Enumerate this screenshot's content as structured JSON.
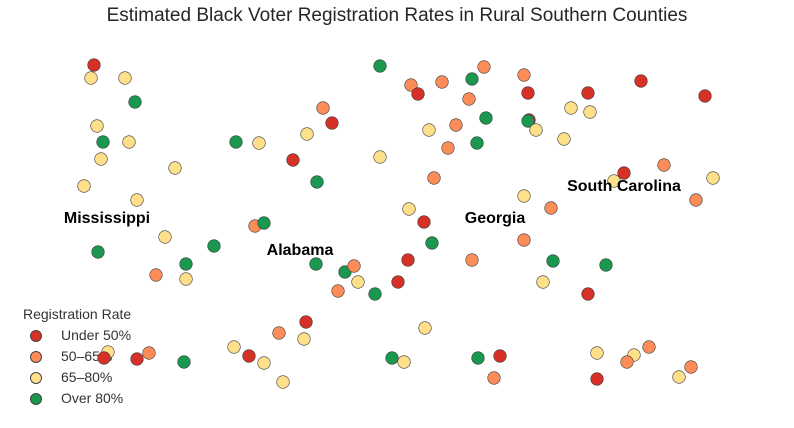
{
  "chart_data": {
    "type": "scatter",
    "title": "Estimated Black Voter Registration Rates in Rural Southern Counties",
    "xlabel": "",
    "ylabel": "",
    "axes_visible": false,
    "grid": false,
    "legend": {
      "title": "Registration Rate",
      "placement": "bottom-left"
    },
    "categories": [
      {
        "label": "Under 50%",
        "color": "#d73027"
      },
      {
        "label": "50–65%",
        "color": "#fc8d59"
      },
      {
        "label": "65–80%",
        "color": "#fee08b"
      },
      {
        "label": "Over 80%",
        "color": "#1a9850"
      }
    ],
    "annotations": [
      "Mississippi",
      "Alabama",
      "Georgia",
      "South Carolina"
    ],
    "points": [
      [
        -89.12,
        34.2,
        0
      ],
      [
        -89.18,
        33.94,
        2
      ],
      [
        -88.5,
        33.94,
        2
      ],
      [
        -88.3,
        33.46,
        3
      ],
      [
        -89.06,
        32.98,
        2
      ],
      [
        -88.94,
        32.66,
        3
      ],
      [
        -88.42,
        32.66,
        2
      ],
      [
        -88.98,
        32.32,
        2
      ],
      [
        -87.5,
        32.14,
        2
      ],
      [
        -89.32,
        31.78,
        2
      ],
      [
        -88.26,
        31.5,
        2
      ],
      [
        -87.7,
        30.76,
        2
      ],
      [
        -89.04,
        30.46,
        3
      ],
      [
        -87.28,
        30.22,
        3
      ],
      [
        -86.72,
        30.58,
        3
      ],
      [
        -87.88,
        30.0,
        1
      ],
      [
        -87.28,
        29.92,
        2
      ],
      [
        -88.84,
        28.46,
        2
      ],
      [
        -88.92,
        28.34,
        0
      ],
      [
        -88.02,
        28.44,
        1
      ],
      [
        -88.26,
        28.32,
        0
      ],
      [
        -87.32,
        28.26,
        3
      ],
      [
        -86.28,
        32.66,
        3
      ],
      [
        -85.82,
        32.64,
        2
      ],
      [
        -84.86,
        32.82,
        2
      ],
      [
        -84.54,
        33.34,
        1
      ],
      [
        -84.36,
        33.04,
        0
      ],
      [
        -85.14,
        32.3,
        0
      ],
      [
        -84.66,
        31.86,
        3
      ],
      [
        -85.9,
        30.98,
        1
      ],
      [
        -85.72,
        31.04,
        3
      ],
      [
        -84.68,
        30.22,
        3
      ],
      [
        -84.1,
        30.06,
        3
      ],
      [
        -83.92,
        30.18,
        1
      ],
      [
        -83.84,
        29.86,
        2
      ],
      [
        -84.24,
        29.68,
        1
      ],
      [
        -83.5,
        29.62,
        3
      ],
      [
        -83.04,
        29.86,
        0
      ],
      [
        -82.84,
        30.3,
        0
      ],
      [
        -82.36,
        30.64,
        3
      ],
      [
        -82.52,
        31.06,
        0
      ],
      [
        -82.82,
        31.32,
        2
      ],
      [
        -83.4,
        32.36,
        2
      ],
      [
        -83.4,
        34.18,
        3
      ],
      [
        -82.78,
        33.8,
        1
      ],
      [
        -82.64,
        33.62,
        0
      ],
      [
        -82.16,
        33.86,
        1
      ],
      [
        -81.56,
        33.92,
        3
      ],
      [
        -81.32,
        34.16,
        1
      ],
      [
        -81.62,
        33.52,
        1
      ],
      [
        -82.42,
        32.9,
        2
      ],
      [
        -81.88,
        33.0,
        1
      ],
      [
        -81.28,
        33.14,
        3
      ],
      [
        -82.04,
        32.54,
        1
      ],
      [
        -81.46,
        32.64,
        3
      ],
      [
        -82.32,
        31.94,
        1
      ],
      [
        -80.52,
        34.0,
        1
      ],
      [
        -80.44,
        33.64,
        0
      ],
      [
        -80.42,
        33.1,
        0
      ],
      [
        -80.44,
        33.08,
        3
      ],
      [
        -80.28,
        32.9,
        2
      ],
      [
        -79.72,
        32.72,
        2
      ],
      [
        -79.58,
        33.34,
        2
      ],
      [
        -79.24,
        33.64,
        0
      ],
      [
        -79.2,
        33.26,
        2
      ],
      [
        -78.18,
        33.88,
        0
      ],
      [
        -76.9,
        33.58,
        0
      ],
      [
        -77.72,
        32.2,
        1
      ],
      [
        -78.52,
        32.04,
        0
      ],
      [
        -78.72,
        31.88,
        2
      ],
      [
        -76.74,
        31.94,
        2
      ],
      [
        -77.08,
        31.5,
        1
      ],
      [
        -80.52,
        31.58,
        2
      ],
      [
        -79.98,
        31.34,
        1
      ],
      [
        -80.52,
        30.7,
        1
      ],
      [
        -81.56,
        30.3,
        1
      ],
      [
        -79.94,
        30.28,
        3
      ],
      [
        -78.88,
        30.2,
        3
      ],
      [
        -80.14,
        29.86,
        2
      ],
      [
        -79.24,
        29.62,
        0
      ],
      [
        -84.88,
        29.06,
        0
      ],
      [
        -85.42,
        28.84,
        1
      ],
      [
        -84.92,
        28.72,
        2
      ],
      [
        -86.32,
        28.56,
        2
      ],
      [
        -86.02,
        28.38,
        0
      ],
      [
        -85.72,
        28.24,
        2
      ],
      [
        -85.34,
        27.86,
        2
      ],
      [
        -82.5,
        28.94,
        2
      ],
      [
        -83.16,
        28.34,
        3
      ],
      [
        -82.92,
        28.26,
        2
      ],
      [
        -81.44,
        28.34,
        3
      ],
      [
        -81.0,
        28.38,
        0
      ],
      [
        -81.12,
        27.94,
        1
      ],
      [
        -79.06,
        28.44,
        2
      ],
      [
        -78.32,
        28.4,
        2
      ],
      [
        -78.02,
        28.56,
        1
      ],
      [
        -78.46,
        28.26,
        1
      ],
      [
        -79.06,
        27.92,
        0
      ],
      [
        -77.42,
        27.96,
        2
      ],
      [
        -77.18,
        28.16,
        1
      ]
    ]
  }
}
